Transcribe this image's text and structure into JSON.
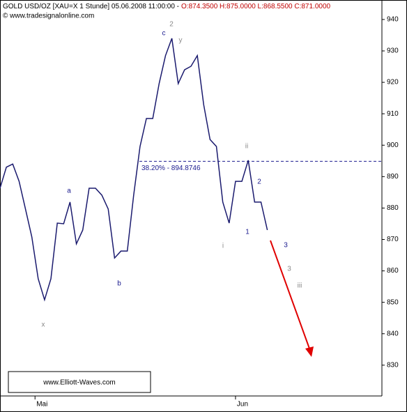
{
  "chart_data": {
    "type": "line",
    "title": "GOLD USD/OZ [XAU=X  1 Stunde] 05.06.2008 11:00:00 -",
    "ohlc": "O:874.3500 H:875.0000 L:868.5500 C:871.0000",
    "source": "© www.tradesignalonline.com",
    "watermark": "www.Elliott-Waves.com",
    "x": [
      0,
      1,
      2,
      3,
      4,
      5,
      6,
      7,
      8,
      9,
      10,
      11,
      12,
      13,
      14,
      15,
      16,
      17,
      18,
      19,
      20,
      21,
      22,
      23,
      24,
      25,
      26,
      27,
      28,
      29,
      30,
      31,
      32,
      33,
      34,
      35,
      36,
      37,
      38,
      39,
      40,
      41,
      42
    ],
    "series": [
      {
        "name": "GOLD USD/OZ",
        "color": "#1a1a6e",
        "values": [
          886.3,
          893,
          894,
          888.5,
          879.7,
          870.8,
          857.5,
          850.8,
          857.5,
          875.2,
          875,
          881.9,
          868.6,
          873,
          886.3,
          886.3,
          884.1,
          879.7,
          864.1,
          866.3,
          866.3,
          884.1,
          899.6,
          908.5,
          908.5,
          919.6,
          928.5,
          934,
          919.6,
          924,
          925.1,
          928.5,
          912.9,
          901.8,
          899.6,
          881.9,
          875.2,
          888.5,
          888.5,
          895.2,
          881.9,
          881.9,
          873
        ]
      }
    ],
    "xlim": [
      0,
      60
    ],
    "xticks": [
      {
        "value": 5.5,
        "label": "Mai"
      },
      {
        "value": 37,
        "label": "Jun"
      }
    ],
    "ylim": [
      820.2,
      946.2
    ],
    "yticks": [
      830,
      840,
      850,
      860,
      870,
      880,
      890,
      900,
      910,
      920,
      930,
      940
    ],
    "fib_level": {
      "value": 894.8746,
      "label": "38.20% - 894.8746",
      "color": "#1a1a8e"
    },
    "annotations": [
      "2",
      "y",
      "c",
      "a",
      "b",
      "x",
      "ii",
      "2",
      "1",
      "i",
      "3",
      "3",
      "iii"
    ]
  }
}
